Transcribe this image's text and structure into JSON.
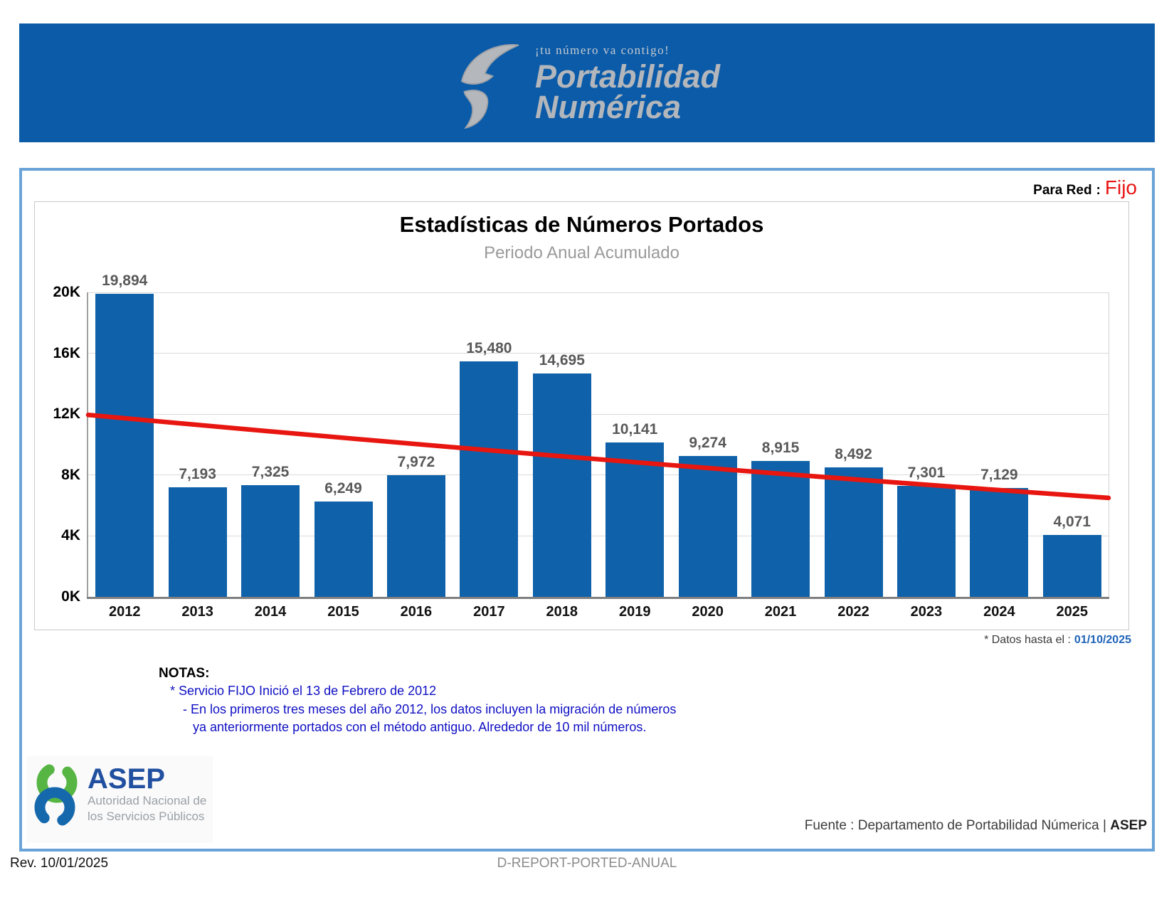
{
  "banner": {
    "tagline": "¡tu número va contigo!",
    "brand_line1": "Portabilidad",
    "brand_line2": "Numérica",
    "background_color": "#0b5ba8",
    "logo_gray": "#b3b6bb"
  },
  "para_red": {
    "label": "Para Red",
    "separator": ":",
    "value": "Fijo",
    "value_color": "#e81313"
  },
  "chart_data": {
    "type": "bar",
    "title": "Estadísticas de Números Portados",
    "subtitle": "Periodo Anual Acumulado",
    "categories": [
      "2012",
      "2013",
      "2014",
      "2015",
      "2016",
      "2017",
      "2018",
      "2019",
      "2020",
      "2021",
      "2022",
      "2023",
      "2024",
      "2025"
    ],
    "values": [
      19894,
      7193,
      7325,
      6249,
      7972,
      15480,
      14695,
      10141,
      9274,
      8915,
      8492,
      7301,
      7129,
      4071
    ],
    "ylim": [
      0,
      20000
    ],
    "ytick_step": 4000,
    "ytick_labels": [
      "0K",
      "4K",
      "8K",
      "12K",
      "16K",
      "20K"
    ],
    "grid": true,
    "legend": "none",
    "bar_color": "#0f62a9",
    "value_label_color": "#595959",
    "trend": {
      "type": "line",
      "color": "#e81610",
      "start_value": 11950,
      "end_value": 6500
    }
  },
  "footnote": {
    "prefix": "* Datos hasta el :",
    "date": "01/10/2025",
    "date_color": "#1e63b8"
  },
  "notes": {
    "heading": "NOTAS:",
    "color": "#0f0fc4",
    "lines": [
      "* Servicio FIJO Inició el 13 de Febrero de 2012",
      "- En los primeros tres meses del año 2012,  los datos incluyen la migración de números",
      "ya anteriormente portados con el método antiguo. Alrededor de 10 mil números."
    ]
  },
  "asep_logo": {
    "name": "ASEP",
    "subtitle_line1": "Autoridad Nacional de",
    "subtitle_line2": "los Servicios Públicos",
    "green": "#56b543",
    "blue": "#1668ad"
  },
  "fuente": {
    "prefix": "Fuente : Departamento de Portabilidad Númerica |",
    "brand": "ASEP"
  },
  "footer": {
    "left": "Rev. 10/01/2025",
    "center": "D-REPORT-PORTED-ANUAL"
  }
}
